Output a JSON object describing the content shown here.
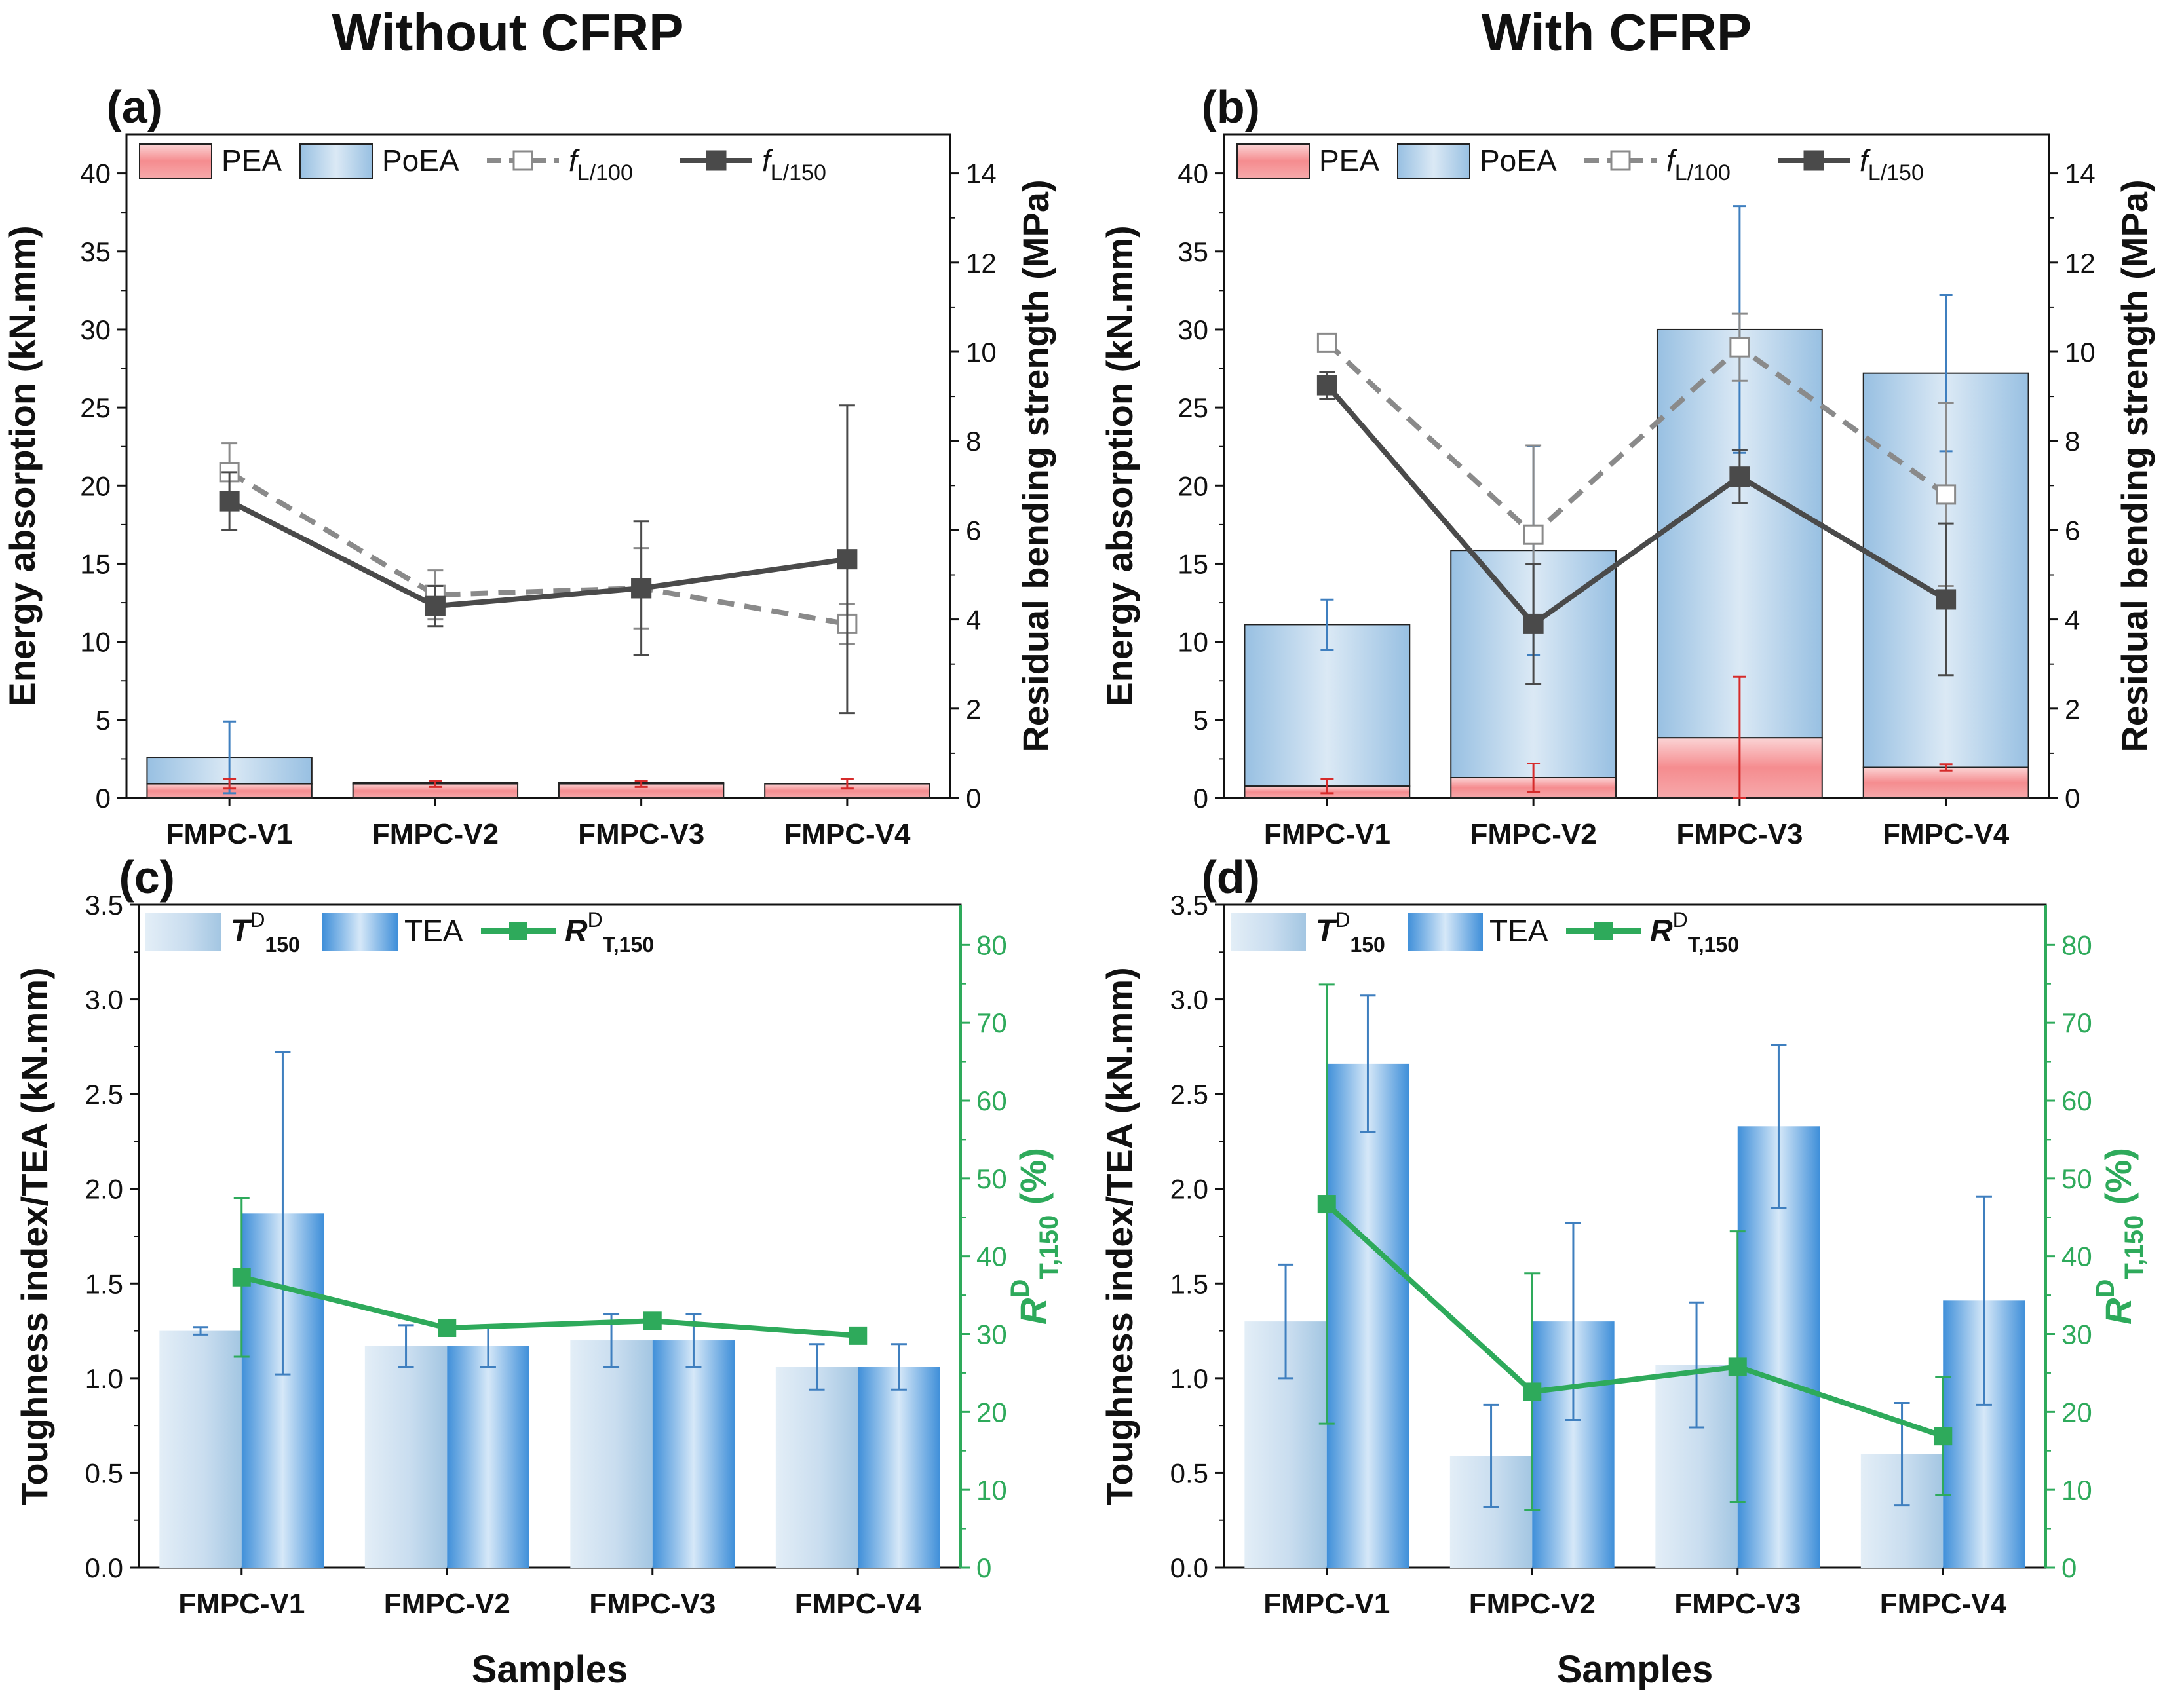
{
  "columns": {
    "left_title": "Without CFRP",
    "right_title": "With CFRP"
  },
  "colors": {
    "pea_top": "#f7c2c4",
    "pea_mid": "#f07d80",
    "poea_side": "#9cc3e3",
    "poea_mid": "#d8e8f4",
    "f100": "#8a8a8a",
    "f150": "#4a4a4a",
    "td_light": "#dbe9f4",
    "td_dark": "#a9c9e2",
    "tea_light": "#d4e7f7",
    "tea_dark": "#4d9be0",
    "rd": "#2eaa5b",
    "err_blue": "#3f7fbf",
    "err_red": "#d62b2b"
  },
  "chart_data": [
    {
      "id": "a",
      "panel_label": "(a)",
      "type": "bar",
      "categories": [
        "FMPC-V1",
        "FMPC-V2",
        "FMPC-V3",
        "FMPC-V4"
      ],
      "y_left": {
        "label": "Energy absorption (kN.mm)",
        "lim": [
          0,
          42.5
        ],
        "ticks": [
          0,
          5,
          10,
          15,
          20,
          25,
          30,
          35,
          40
        ]
      },
      "y_right": {
        "label": "Residual bending strength (MPa)",
        "lim": [
          0,
          14.875
        ],
        "ticks": [
          0,
          2,
          4,
          6,
          8,
          10,
          12,
          14
        ]
      },
      "legend": {
        "pea": "PEA",
        "poea": "PoEA",
        "f100_sym": "f",
        "f100_sub": "L/100",
        "f150_sym": "f",
        "f150_sub": "L/150"
      },
      "series": [
        {
          "name": "PEA",
          "kind": "bar",
          "values": [
            0.9,
            0.9,
            0.9,
            0.9
          ],
          "err": [
            0.3,
            0.2,
            0.2,
            0.3
          ]
        },
        {
          "name": "PoEA",
          "kind": "bar-stack",
          "values": [
            1.7,
            0.1,
            0.1,
            0.0
          ],
          "err": [
            2.3,
            0,
            0,
            0
          ]
        },
        {
          "name": "f L/100",
          "kind": "line",
          "values": [
            7.3,
            4.55,
            4.7,
            3.9
          ],
          "err": [
            0.65,
            0.55,
            0.9,
            0.45
          ]
        },
        {
          "name": "f L/150",
          "kind": "line",
          "values": [
            6.65,
            4.3,
            4.7,
            5.35
          ],
          "err": [
            0.65,
            0.45,
            1.5,
            3.45
          ]
        }
      ]
    },
    {
      "id": "b",
      "panel_label": "(b)",
      "type": "bar",
      "categories": [
        "FMPC-V1",
        "FMPC-V2",
        "FMPC-V3",
        "FMPC-V4"
      ],
      "y_left": {
        "label": "Energy absorption (kN.mm)",
        "lim": [
          0,
          42.5
        ],
        "ticks": [
          0,
          5,
          10,
          15,
          20,
          25,
          30,
          35,
          40
        ]
      },
      "y_right": {
        "label": "Residual bending strength (MPa)",
        "lim": [
          0,
          14.875
        ],
        "ticks": [
          0,
          2,
          4,
          6,
          8,
          10,
          12,
          14
        ]
      },
      "legend": {
        "pea": "PEA",
        "poea": "PoEA",
        "f100_sym": "f",
        "f100_sub": "L/100",
        "f150_sym": "f",
        "f150_sub": "L/150"
      },
      "series": [
        {
          "name": "PEA",
          "kind": "bar",
          "values": [
            0.75,
            1.3,
            3.85,
            1.95
          ],
          "err": [
            0.45,
            0.9,
            3.9,
            0.2
          ]
        },
        {
          "name": "PoEA",
          "kind": "bar-stack",
          "values": [
            10.35,
            14.55,
            26.15,
            25.25
          ],
          "err": [
            1.6,
            6.7,
            7.9,
            5.0
          ]
        },
        {
          "name": "f L/100",
          "kind": "line",
          "values": [
            10.2,
            5.9,
            10.1,
            6.8
          ],
          "err": [
            0.0,
            2.0,
            0.75,
            2.05
          ]
        },
        {
          "name": "f L/150",
          "kind": "line",
          "values": [
            9.25,
            3.9,
            7.2,
            4.45
          ],
          "err": [
            0.3,
            1.35,
            0.6,
            1.7
          ]
        }
      ]
    },
    {
      "id": "c",
      "panel_label": "(c)",
      "type": "bar",
      "categories": [
        "FMPC-V1",
        "FMPC-V2",
        "FMPC-V3",
        "FMPC-V4"
      ],
      "xlabel": "Samples",
      "y_left": {
        "label": "Toughness index/TEA (kN.mm)",
        "lim": [
          0,
          3.5
        ],
        "ticks": [
          0.0,
          0.5,
          1.0,
          1.5,
          2.0,
          2.5,
          3.0,
          3.5
        ],
        "decimals": 1
      },
      "y_right": {
        "label_sym": "R",
        "label_sup": "D",
        "label_sub": "T,150",
        "label_unit": " (%)",
        "lim": [
          0,
          85.16
        ],
        "ticks": [
          0,
          10,
          20,
          30,
          40,
          50,
          60,
          70,
          80
        ]
      },
      "legend": {
        "td_sym": "T",
        "td_sup": "D",
        "td_sub": "150",
        "tea": "TEA",
        "rd_sym": "R",
        "rd_sup": "D",
        "rd_sub": "T,150"
      },
      "series": [
        {
          "name": "T D 150",
          "kind": "bar",
          "values": [
            1.25,
            1.17,
            1.2,
            1.06
          ],
          "err": [
            0.02,
            0.11,
            0.14,
            0.12
          ]
        },
        {
          "name": "TEA",
          "kind": "bar",
          "values": [
            1.87,
            1.17,
            1.2,
            1.06
          ],
          "err": [
            0.85,
            0.11,
            0.14,
            0.12
          ]
        },
        {
          "name": "R D T,150",
          "kind": "line",
          "values": [
            37.3,
            30.8,
            31.7,
            29.8
          ],
          "err": [
            10.2,
            0,
            0,
            0
          ]
        }
      ]
    },
    {
      "id": "d",
      "panel_label": "(d)",
      "type": "bar",
      "categories": [
        "FMPC-V1",
        "FMPC-V2",
        "FMPC-V3",
        "FMPC-V4"
      ],
      "xlabel": "Samples",
      "y_left": {
        "label": "Toughness index/TEA (kN.mm)",
        "lim": [
          0,
          3.5
        ],
        "ticks": [
          0.0,
          0.5,
          1.0,
          1.5,
          2.0,
          2.5,
          3.0,
          3.5
        ],
        "decimals": 1
      },
      "y_right": {
        "label_sym": "R",
        "label_sup": "D",
        "label_sub": "T,150",
        "label_unit": " (%)",
        "lim": [
          0,
          85.16
        ],
        "ticks": [
          0,
          10,
          20,
          30,
          40,
          50,
          60,
          70,
          80
        ]
      },
      "legend": {
        "td_sym": "T",
        "td_sup": "D",
        "td_sub": "150",
        "tea": "TEA",
        "rd_sym": "R",
        "rd_sup": "D",
        "rd_sub": "T,150"
      },
      "series": [
        {
          "name": "T D 150",
          "kind": "bar",
          "values": [
            1.3,
            0.59,
            1.07,
            0.6
          ],
          "err": [
            0.3,
            0.27,
            0.33,
            0.27
          ]
        },
        {
          "name": "TEA",
          "kind": "bar",
          "values": [
            2.66,
            1.3,
            2.33,
            1.41
          ],
          "err": [
            0.36,
            0.52,
            0.43,
            0.55
          ]
        },
        {
          "name": "R D T,150",
          "kind": "line",
          "values": [
            46.7,
            22.6,
            25.8,
            16.9
          ],
          "err": [
            28.2,
            15.2,
            17.4,
            7.6
          ]
        }
      ]
    }
  ]
}
